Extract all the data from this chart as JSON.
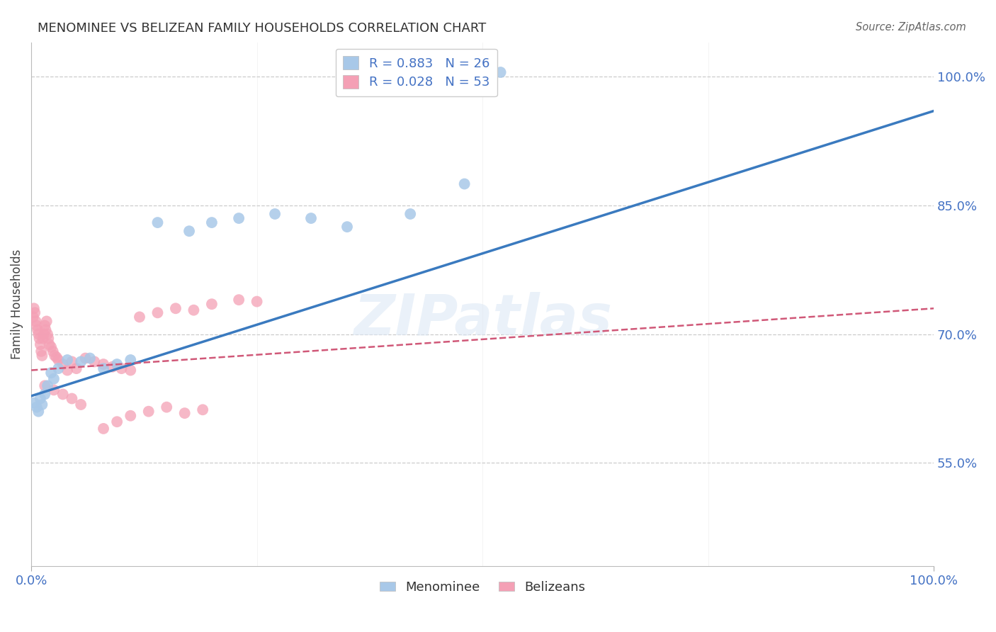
{
  "title": "MENOMINEE VS BELIZEAN FAMILY HOUSEHOLDS CORRELATION CHART",
  "source": "Source: ZipAtlas.com",
  "ylabel": "Family Households",
  "watermark": "ZIPatlas",
  "blue_R": 0.883,
  "blue_N": 26,
  "pink_R": 0.028,
  "pink_N": 53,
  "blue_label": "Menominee",
  "pink_label": "Belizeans",
  "blue_color": "#a8c8e8",
  "pink_color": "#f4a0b5",
  "blue_line_color": "#3a7abf",
  "pink_line_color": "#d05878",
  "xlim": [
    0.0,
    1.0
  ],
  "ylim": [
    0.43,
    1.04
  ],
  "right_yticks": [
    0.55,
    0.7,
    0.85,
    1.0
  ],
  "right_yticklabels": [
    "55.0%",
    "70.0%",
    "85.0%",
    "100.0%"
  ],
  "xticks": [
    0.0,
    1.0
  ],
  "xticklabels": [
    "0.0%",
    "100.0%"
  ],
  "blue_x": [
    0.003,
    0.006,
    0.008,
    0.01,
    0.012,
    0.015,
    0.018,
    0.022,
    0.025,
    0.03,
    0.04,
    0.055,
    0.065,
    0.08,
    0.095,
    0.11,
    0.14,
    0.175,
    0.2,
    0.23,
    0.27,
    0.31,
    0.35,
    0.42,
    0.48,
    0.52
  ],
  "blue_y": [
    0.62,
    0.615,
    0.61,
    0.625,
    0.618,
    0.63,
    0.64,
    0.655,
    0.648,
    0.66,
    0.67,
    0.668,
    0.672,
    0.66,
    0.665,
    0.67,
    0.83,
    0.82,
    0.83,
    0.835,
    0.84,
    0.835,
    0.825,
    0.84,
    0.875,
    1.005
  ],
  "pink_x": [
    0.002,
    0.003,
    0.004,
    0.005,
    0.006,
    0.007,
    0.008,
    0.009,
    0.01,
    0.011,
    0.012,
    0.013,
    0.014,
    0.015,
    0.016,
    0.017,
    0.018,
    0.019,
    0.02,
    0.022,
    0.024,
    0.026,
    0.028,
    0.03,
    0.035,
    0.04,
    0.045,
    0.05,
    0.06,
    0.07,
    0.08,
    0.09,
    0.1,
    0.11,
    0.12,
    0.14,
    0.16,
    0.18,
    0.2,
    0.23,
    0.25,
    0.08,
    0.095,
    0.11,
    0.13,
    0.15,
    0.17,
    0.19,
    0.015,
    0.025,
    0.035,
    0.045,
    0.055
  ],
  "pink_y": [
    0.72,
    0.73,
    0.725,
    0.715,
    0.71,
    0.705,
    0.7,
    0.695,
    0.688,
    0.68,
    0.675,
    0.695,
    0.7,
    0.71,
    0.705,
    0.715,
    0.7,
    0.695,
    0.688,
    0.685,
    0.68,
    0.675,
    0.673,
    0.67,
    0.665,
    0.658,
    0.668,
    0.66,
    0.672,
    0.668,
    0.665,
    0.662,
    0.66,
    0.658,
    0.72,
    0.725,
    0.73,
    0.728,
    0.735,
    0.74,
    0.738,
    0.59,
    0.598,
    0.605,
    0.61,
    0.615,
    0.608,
    0.612,
    0.64,
    0.635,
    0.63,
    0.625,
    0.618
  ],
  "blue_trendline": [
    0.0,
    1.0,
    0.628,
    0.96
  ],
  "pink_trendline": [
    0.0,
    1.0,
    0.658,
    0.73
  ]
}
